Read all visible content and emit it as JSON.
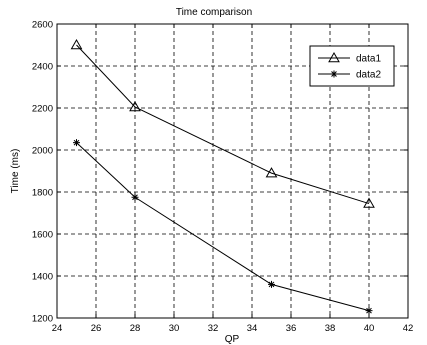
{
  "chart_data": {
    "type": "line",
    "title": "Time comparison",
    "xlabel": "QP",
    "ylabel": "Time (ms)",
    "xlim": [
      24,
      42
    ],
    "ylim": [
      1200,
      2600
    ],
    "xticks": [
      24,
      26,
      28,
      30,
      32,
      34,
      36,
      38,
      40,
      42
    ],
    "yticks": [
      1200,
      1400,
      1600,
      1800,
      2000,
      2200,
      2400,
      2600
    ],
    "grid": true,
    "legend_position": "top-right",
    "series": [
      {
        "name": "data1",
        "marker": "triangle",
        "x": [
          25,
          28,
          35,
          40
        ],
        "y": [
          2500,
          2205,
          1890,
          1745
        ]
      },
      {
        "name": "data2",
        "marker": "star",
        "x": [
          25,
          28,
          35,
          40
        ],
        "y": [
          2035,
          1775,
          1360,
          1235
        ]
      }
    ]
  }
}
